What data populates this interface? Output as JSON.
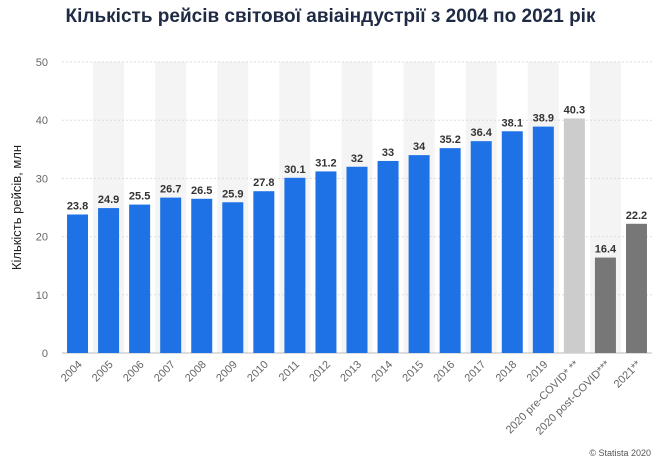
{
  "chart_data": {
    "type": "bar",
    "title": "Кількість рейсів світової авіаіндустрії з 2004 по 2021 рік",
    "xlabel": "",
    "ylabel": "Кількість рейсів, млн",
    "ylim": [
      0,
      50
    ],
    "yticks": [
      0,
      10,
      20,
      30,
      40,
      50
    ],
    "grid": true,
    "categories": [
      "2004",
      "2005",
      "2006",
      "2007",
      "2008",
      "2009",
      "2010",
      "2011",
      "2012",
      "2013",
      "2014",
      "2015",
      "2016",
      "2017",
      "2018",
      "2019",
      "2020 pre-COVID* **",
      "2020 post-COVID***",
      "2021**"
    ],
    "values": [
      23.8,
      24.9,
      25.5,
      26.7,
      26.5,
      25.9,
      27.8,
      30.1,
      31.2,
      32,
      33,
      34,
      35.2,
      36.4,
      38.1,
      38.9,
      40.3,
      16.4,
      22.2
    ],
    "value_labels": [
      "23.8",
      "24.9",
      "25.5",
      "26.7",
      "26.5",
      "25.9",
      "27.8",
      "30.1",
      "31.2",
      "32",
      "33",
      "34",
      "35.2",
      "36.4",
      "38.1",
      "38.9",
      "40.3",
      "16.4",
      "22.2"
    ],
    "bar_colors": [
      "#1f72e6",
      "#1f72e6",
      "#1f72e6",
      "#1f72e6",
      "#1f72e6",
      "#1f72e6",
      "#1f72e6",
      "#1f72e6",
      "#1f72e6",
      "#1f72e6",
      "#1f72e6",
      "#1f72e6",
      "#1f72e6",
      "#1f72e6",
      "#1f72e6",
      "#1f72e6",
      "#cccccc",
      "#777777",
      "#777777"
    ]
  },
  "credit": "© Statista 2020"
}
